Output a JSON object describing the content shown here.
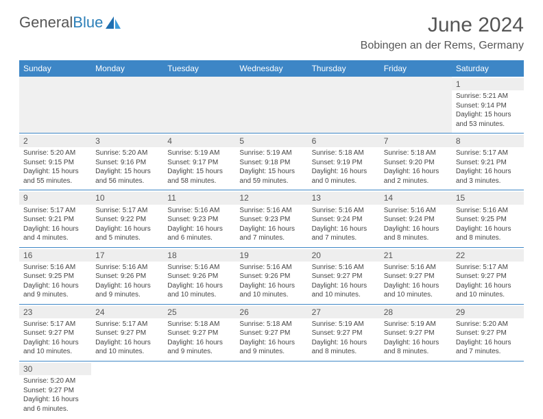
{
  "brand": {
    "name_part1": "General",
    "name_part2": "Blue"
  },
  "title": "June 2024",
  "location": "Bobingen an der Rems, Germany",
  "colors": {
    "header_bg": "#3d86c6",
    "header_fg": "#ffffff",
    "rule": "#3d86c6",
    "daynum_bg": "#eeeeee",
    "empty_bg": "#f0f0f0",
    "logo_blue": "#2c7fb8"
  },
  "day_headers": [
    "Sunday",
    "Monday",
    "Tuesday",
    "Wednesday",
    "Thursday",
    "Friday",
    "Saturday"
  ],
  "weeks": [
    [
      null,
      null,
      null,
      null,
      null,
      null,
      {
        "n": "1",
        "sunrise": "Sunrise: 5:21 AM",
        "sunset": "Sunset: 9:14 PM",
        "daylight": "Daylight: 15 hours and 53 minutes."
      }
    ],
    [
      {
        "n": "2",
        "sunrise": "Sunrise: 5:20 AM",
        "sunset": "Sunset: 9:15 PM",
        "daylight": "Daylight: 15 hours and 55 minutes."
      },
      {
        "n": "3",
        "sunrise": "Sunrise: 5:20 AM",
        "sunset": "Sunset: 9:16 PM",
        "daylight": "Daylight: 15 hours and 56 minutes."
      },
      {
        "n": "4",
        "sunrise": "Sunrise: 5:19 AM",
        "sunset": "Sunset: 9:17 PM",
        "daylight": "Daylight: 15 hours and 58 minutes."
      },
      {
        "n": "5",
        "sunrise": "Sunrise: 5:19 AM",
        "sunset": "Sunset: 9:18 PM",
        "daylight": "Daylight: 15 hours and 59 minutes."
      },
      {
        "n": "6",
        "sunrise": "Sunrise: 5:18 AM",
        "sunset": "Sunset: 9:19 PM",
        "daylight": "Daylight: 16 hours and 0 minutes."
      },
      {
        "n": "7",
        "sunrise": "Sunrise: 5:18 AM",
        "sunset": "Sunset: 9:20 PM",
        "daylight": "Daylight: 16 hours and 2 minutes."
      },
      {
        "n": "8",
        "sunrise": "Sunrise: 5:17 AM",
        "sunset": "Sunset: 9:21 PM",
        "daylight": "Daylight: 16 hours and 3 minutes."
      }
    ],
    [
      {
        "n": "9",
        "sunrise": "Sunrise: 5:17 AM",
        "sunset": "Sunset: 9:21 PM",
        "daylight": "Daylight: 16 hours and 4 minutes."
      },
      {
        "n": "10",
        "sunrise": "Sunrise: 5:17 AM",
        "sunset": "Sunset: 9:22 PM",
        "daylight": "Daylight: 16 hours and 5 minutes."
      },
      {
        "n": "11",
        "sunrise": "Sunrise: 5:16 AM",
        "sunset": "Sunset: 9:23 PM",
        "daylight": "Daylight: 16 hours and 6 minutes."
      },
      {
        "n": "12",
        "sunrise": "Sunrise: 5:16 AM",
        "sunset": "Sunset: 9:23 PM",
        "daylight": "Daylight: 16 hours and 7 minutes."
      },
      {
        "n": "13",
        "sunrise": "Sunrise: 5:16 AM",
        "sunset": "Sunset: 9:24 PM",
        "daylight": "Daylight: 16 hours and 7 minutes."
      },
      {
        "n": "14",
        "sunrise": "Sunrise: 5:16 AM",
        "sunset": "Sunset: 9:24 PM",
        "daylight": "Daylight: 16 hours and 8 minutes."
      },
      {
        "n": "15",
        "sunrise": "Sunrise: 5:16 AM",
        "sunset": "Sunset: 9:25 PM",
        "daylight": "Daylight: 16 hours and 8 minutes."
      }
    ],
    [
      {
        "n": "16",
        "sunrise": "Sunrise: 5:16 AM",
        "sunset": "Sunset: 9:25 PM",
        "daylight": "Daylight: 16 hours and 9 minutes."
      },
      {
        "n": "17",
        "sunrise": "Sunrise: 5:16 AM",
        "sunset": "Sunset: 9:26 PM",
        "daylight": "Daylight: 16 hours and 9 minutes."
      },
      {
        "n": "18",
        "sunrise": "Sunrise: 5:16 AM",
        "sunset": "Sunset: 9:26 PM",
        "daylight": "Daylight: 16 hours and 10 minutes."
      },
      {
        "n": "19",
        "sunrise": "Sunrise: 5:16 AM",
        "sunset": "Sunset: 9:26 PM",
        "daylight": "Daylight: 16 hours and 10 minutes."
      },
      {
        "n": "20",
        "sunrise": "Sunrise: 5:16 AM",
        "sunset": "Sunset: 9:27 PM",
        "daylight": "Daylight: 16 hours and 10 minutes."
      },
      {
        "n": "21",
        "sunrise": "Sunrise: 5:16 AM",
        "sunset": "Sunset: 9:27 PM",
        "daylight": "Daylight: 16 hours and 10 minutes."
      },
      {
        "n": "22",
        "sunrise": "Sunrise: 5:17 AM",
        "sunset": "Sunset: 9:27 PM",
        "daylight": "Daylight: 16 hours and 10 minutes."
      }
    ],
    [
      {
        "n": "23",
        "sunrise": "Sunrise: 5:17 AM",
        "sunset": "Sunset: 9:27 PM",
        "daylight": "Daylight: 16 hours and 10 minutes."
      },
      {
        "n": "24",
        "sunrise": "Sunrise: 5:17 AM",
        "sunset": "Sunset: 9:27 PM",
        "daylight": "Daylight: 16 hours and 10 minutes."
      },
      {
        "n": "25",
        "sunrise": "Sunrise: 5:18 AM",
        "sunset": "Sunset: 9:27 PM",
        "daylight": "Daylight: 16 hours and 9 minutes."
      },
      {
        "n": "26",
        "sunrise": "Sunrise: 5:18 AM",
        "sunset": "Sunset: 9:27 PM",
        "daylight": "Daylight: 16 hours and 9 minutes."
      },
      {
        "n": "27",
        "sunrise": "Sunrise: 5:19 AM",
        "sunset": "Sunset: 9:27 PM",
        "daylight": "Daylight: 16 hours and 8 minutes."
      },
      {
        "n": "28",
        "sunrise": "Sunrise: 5:19 AM",
        "sunset": "Sunset: 9:27 PM",
        "daylight": "Daylight: 16 hours and 8 minutes."
      },
      {
        "n": "29",
        "sunrise": "Sunrise: 5:20 AM",
        "sunset": "Sunset: 9:27 PM",
        "daylight": "Daylight: 16 hours and 7 minutes."
      }
    ],
    [
      {
        "n": "30",
        "sunrise": "Sunrise: 5:20 AM",
        "sunset": "Sunset: 9:27 PM",
        "daylight": "Daylight: 16 hours and 6 minutes."
      },
      null,
      null,
      null,
      null,
      null,
      null
    ]
  ]
}
